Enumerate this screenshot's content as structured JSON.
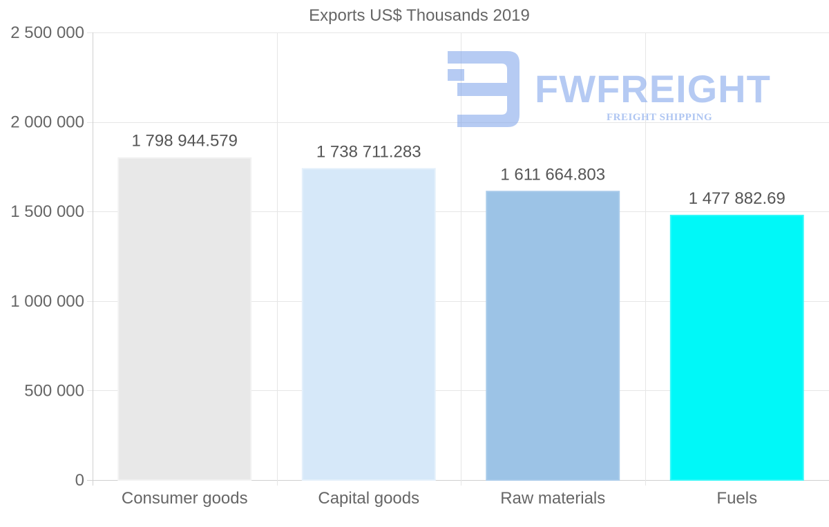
{
  "chart_data": {
    "type": "bar",
    "title": "Exports US$ Thousands 2019",
    "categories": [
      "Consumer goods",
      "Capital goods",
      "Raw materials",
      "Fuels"
    ],
    "values": [
      1798944.579,
      1738711.283,
      1611664.803,
      1477882.69
    ],
    "value_labels": [
      "1 798 944.579",
      "1 738 711.283",
      "1 611 664.803",
      "1 477 882.69"
    ],
    "bar_colors": [
      "#e8e8e8",
      "#d6e8f9",
      "#9cc3e6",
      "#00f8f8"
    ],
    "bar_border_colors": [
      "#f2f2f2",
      "#e4f0fb",
      "#a9cbea",
      "#33f8f8"
    ],
    "ylim": [
      0,
      2500000
    ],
    "yticks": [
      0,
      500000,
      1000000,
      1500000,
      2000000,
      2500000
    ],
    "ytick_labels": [
      "0",
      "500 000",
      "1 000 000",
      "1 500 000",
      "2 000 000",
      "2 500 000"
    ],
    "xlabel": "",
    "ylabel": "",
    "grid": true,
    "legend": "none"
  },
  "watermark": {
    "brand": "FWFREIGHT",
    "tagline": "FREIGHT SHIPPING",
    "color": "#7aa0ea"
  }
}
